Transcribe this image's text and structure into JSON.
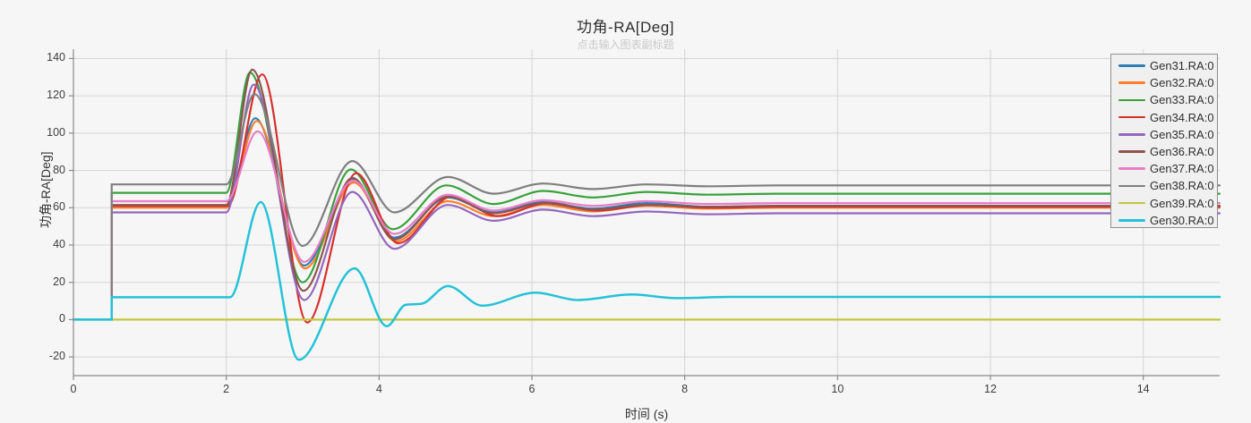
{
  "page": {
    "background": "#f6f6f6"
  },
  "header": {
    "title": "功角-RA[Deg]",
    "subtitle_placeholder": "点击输入图表副标题"
  },
  "axes": {
    "y_label": "功角-RA[Deg]",
    "x_label": "时间 (s)"
  },
  "colors": {
    "grid": "#d4d4d4",
    "axis": "#8a8a8a",
    "tick_text": "#3d3d3d",
    "legend_bg": "#f0f0f0",
    "legend_border": "#909090"
  },
  "chart_data": {
    "type": "line",
    "title": "功角-RA[Deg]",
    "subtitle": "点击输入图表副标题",
    "xlabel": "时间 (s)",
    "ylabel": "功角-RA[Deg]",
    "xlim": [
      0,
      15
    ],
    "ylim": [
      -30,
      145
    ],
    "x_ticks": [
      0,
      2,
      4,
      6,
      8,
      10,
      12,
      14
    ],
    "y_ticks": [
      -20,
      0,
      20,
      40,
      60,
      80,
      100,
      120,
      140
    ],
    "grid": true,
    "legend_position": "top-right",
    "series": [
      {
        "name": "Gen31.RA:0",
        "color": "#2f7eb2",
        "points": [
          [
            0,
            0
          ],
          [
            0.5,
            0
          ],
          [
            0.5,
            60.5
          ],
          [
            2.0,
            60.5
          ],
          [
            2.38,
            108
          ],
          [
            3.02,
            29
          ],
          [
            3.66,
            75
          ],
          [
            4.2,
            44
          ],
          [
            4.9,
            65.5
          ],
          [
            5.5,
            57.5
          ],
          [
            6.15,
            63
          ],
          [
            6.8,
            59.5
          ],
          [
            7.5,
            62.5
          ],
          [
            8.3,
            60.5
          ],
          [
            9.2,
            61
          ],
          [
            15,
            61
          ]
        ]
      },
      {
        "name": "Gen32.RA:0",
        "color": "#ff7f2a",
        "points": [
          [
            0,
            0
          ],
          [
            0.5,
            0
          ],
          [
            0.5,
            60
          ],
          [
            2.0,
            60
          ],
          [
            2.4,
            106.5
          ],
          [
            3.03,
            27.5
          ],
          [
            3.67,
            73.5
          ],
          [
            4.22,
            42
          ],
          [
            4.9,
            63.5
          ],
          [
            5.5,
            55.5
          ],
          [
            6.15,
            61.5
          ],
          [
            6.8,
            58
          ],
          [
            7.5,
            61
          ],
          [
            8.3,
            59.5
          ],
          [
            9.2,
            60
          ],
          [
            15,
            60
          ]
        ]
      },
      {
        "name": "Gen33.RA:0",
        "color": "#39a23c",
        "points": [
          [
            0,
            0
          ],
          [
            0.5,
            0
          ],
          [
            0.5,
            68
          ],
          [
            2.0,
            68
          ],
          [
            2.31,
            132.5
          ],
          [
            3.0,
            20
          ],
          [
            3.63,
            80.5
          ],
          [
            4.18,
            48.5
          ],
          [
            4.88,
            72
          ],
          [
            5.5,
            62
          ],
          [
            6.15,
            69
          ],
          [
            6.8,
            65.5
          ],
          [
            7.5,
            68.5
          ],
          [
            8.3,
            67
          ],
          [
            9.2,
            67.5
          ],
          [
            15,
            67.5
          ]
        ]
      },
      {
        "name": "Gen34.RA:0",
        "color": "#d62f2e",
        "points": [
          [
            0,
            0
          ],
          [
            0.5,
            0
          ],
          [
            0.5,
            61
          ],
          [
            2.02,
            61
          ],
          [
            2.47,
            131.5
          ],
          [
            3.06,
            -1.5
          ],
          [
            3.7,
            78.5
          ],
          [
            4.25,
            41
          ],
          [
            4.95,
            66
          ],
          [
            5.55,
            55.5
          ],
          [
            6.2,
            62.5
          ],
          [
            6.85,
            58.5
          ],
          [
            7.55,
            61.5
          ],
          [
            8.35,
            60
          ],
          [
            9.2,
            60.5
          ],
          [
            15,
            60.5
          ]
        ]
      },
      {
        "name": "Gen35.RA:0",
        "color": "#9467bd",
        "points": [
          [
            0,
            0
          ],
          [
            0.5,
            0
          ],
          [
            0.5,
            57.5
          ],
          [
            2.0,
            57.5
          ],
          [
            2.36,
            126
          ],
          [
            3.02,
            10.5
          ],
          [
            3.65,
            68.5
          ],
          [
            4.2,
            38
          ],
          [
            4.9,
            61.5
          ],
          [
            5.5,
            53
          ],
          [
            6.15,
            59
          ],
          [
            6.8,
            55.5
          ],
          [
            7.5,
            58
          ],
          [
            8.3,
            56.5
          ],
          [
            9.2,
            57
          ],
          [
            15,
            57
          ]
        ]
      },
      {
        "name": "Gen36.RA:0",
        "color": "#8e544e",
        "points": [
          [
            0,
            0
          ],
          [
            0.5,
            0
          ],
          [
            0.5,
            61.5
          ],
          [
            2.0,
            61.5
          ],
          [
            2.34,
            134
          ],
          [
            3.01,
            15.5
          ],
          [
            3.65,
            76
          ],
          [
            4.2,
            43
          ],
          [
            4.9,
            66
          ],
          [
            5.5,
            57
          ],
          [
            6.15,
            62.5
          ],
          [
            6.8,
            59
          ],
          [
            7.5,
            61.5
          ],
          [
            8.3,
            60.5
          ],
          [
            9.2,
            61
          ],
          [
            15,
            61
          ]
        ]
      },
      {
        "name": "Gen37.RA:0",
        "color": "#e87cc9",
        "points": [
          [
            0,
            0
          ],
          [
            0.5,
            0
          ],
          [
            0.5,
            63.5
          ],
          [
            2.0,
            63.5
          ],
          [
            2.41,
            101
          ],
          [
            3.02,
            31
          ],
          [
            3.66,
            74.5
          ],
          [
            4.2,
            46
          ],
          [
            4.9,
            67
          ],
          [
            5.5,
            58.5
          ],
          [
            6.15,
            64
          ],
          [
            6.8,
            61
          ],
          [
            7.5,
            63.5
          ],
          [
            8.3,
            62
          ],
          [
            9.2,
            62.5
          ],
          [
            15,
            62.5
          ]
        ]
      },
      {
        "name": "Gen38.RA:0",
        "color": "#7f7f7f",
        "points": [
          [
            0,
            0
          ],
          [
            0.5,
            0
          ],
          [
            0.5,
            72.5
          ],
          [
            2.0,
            72.5
          ],
          [
            2.37,
            121
          ],
          [
            3.0,
            39.5
          ],
          [
            3.65,
            85
          ],
          [
            4.2,
            57.5
          ],
          [
            4.9,
            76.5
          ],
          [
            5.5,
            67.5
          ],
          [
            6.15,
            73
          ],
          [
            6.8,
            70
          ],
          [
            7.5,
            72.5
          ],
          [
            8.3,
            71.5
          ],
          [
            9.2,
            72
          ],
          [
            15,
            72
          ]
        ]
      },
      {
        "name": "Gen39.RA:0",
        "color": "#c2c63c",
        "points": [
          [
            0,
            0
          ],
          [
            15,
            0
          ]
        ]
      },
      {
        "name": "Gen30.RA:0",
        "color": "#24c2d8",
        "points": [
          [
            0,
            0
          ],
          [
            0.5,
            0
          ],
          [
            0.5,
            12
          ],
          [
            2.05,
            12
          ],
          [
            2.45,
            63
          ],
          [
            2.95,
            -21.5
          ],
          [
            3.68,
            27.5
          ],
          [
            4.1,
            -3.5
          ],
          [
            4.35,
            8
          ],
          [
            4.55,
            8.5
          ],
          [
            4.9,
            18
          ],
          [
            5.35,
            7.5
          ],
          [
            6.05,
            14.5
          ],
          [
            6.6,
            10.5
          ],
          [
            7.3,
            13.5
          ],
          [
            7.9,
            11.5
          ],
          [
            8.6,
            12.2
          ],
          [
            15,
            12.2
          ]
        ]
      }
    ]
  }
}
